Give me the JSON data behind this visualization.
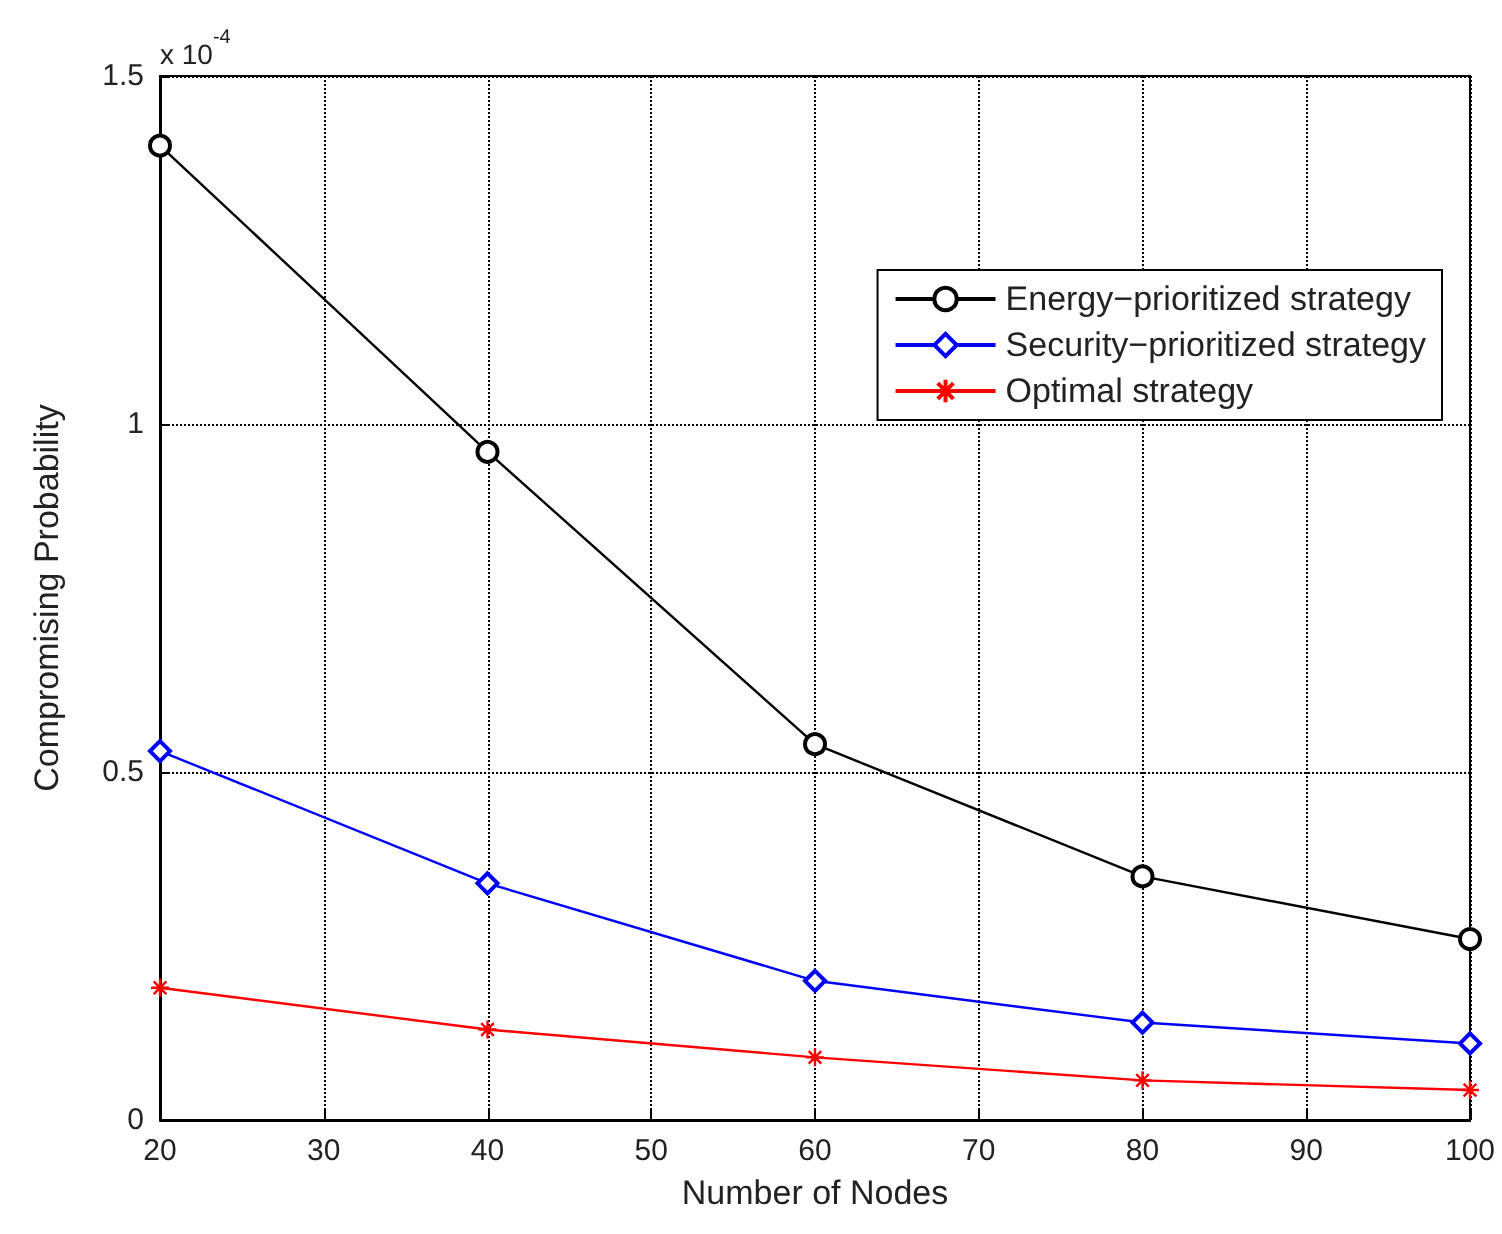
{
  "chart_data": {
    "type": "line",
    "xlabel": "Number of Nodes",
    "ylabel": "Compromising Probability",
    "annotations": [
      "x 10$^{-4}$"
    ],
    "x": [
      20,
      40,
      60,
      80,
      100
    ],
    "xlim": [
      20,
      100
    ],
    "xticks": [
      20,
      30,
      40,
      50,
      60,
      70,
      80,
      90,
      100
    ],
    "ylim": [
      0,
      1.5
    ],
    "yticks": [
      0,
      0.5,
      1,
      1.5
    ],
    "grid": true,
    "legend": "top right",
    "line_style": "solid",
    "series": [
      {
        "name": "Energy−prioritized strategy",
        "color": "#000000",
        "marker": "circle",
        "values": [
          1.4,
          0.96,
          0.54,
          0.35,
          0.26
        ]
      },
      {
        "name": "Security−prioritized strategy",
        "color": "#0000ff",
        "marker": "diamond",
        "values": [
          0.53,
          0.34,
          0.2,
          0.14,
          0.11
        ]
      },
      {
        "name": "Optimal strategy",
        "color": "#ff0000",
        "marker": "cross",
        "values": [
          0.19,
          0.13,
          0.09,
          0.057,
          0.043
        ]
      }
    ]
  }
}
